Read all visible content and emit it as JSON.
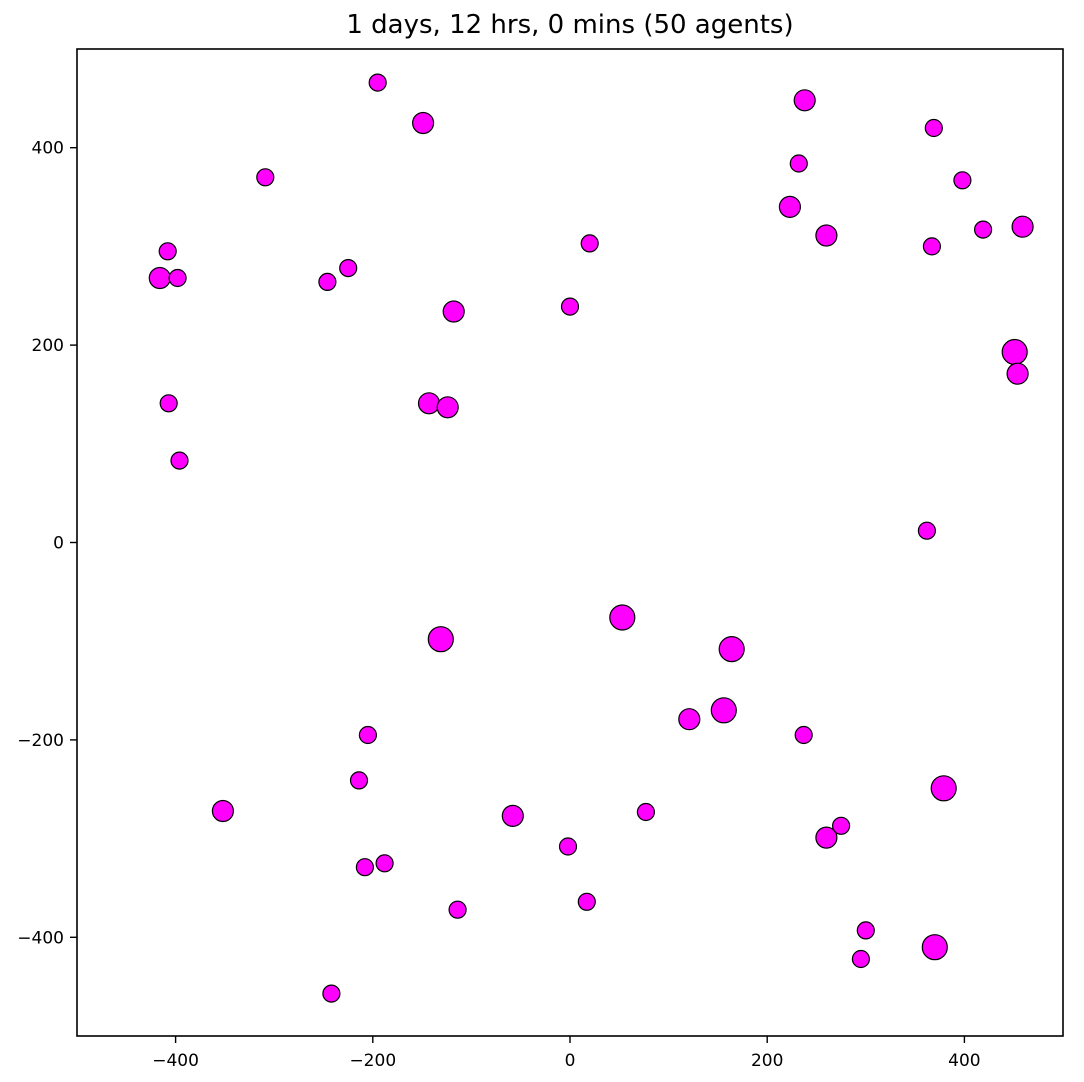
{
  "chart_data": {
    "type": "scatter",
    "title": "1 days, 12 hrs, 0 mins (50 agents)",
    "xlabel": "",
    "ylabel": "",
    "xlim": [
      -500,
      500
    ],
    "ylim": [
      -500,
      500
    ],
    "x_ticks": [
      -400,
      -200,
      0,
      200,
      400
    ],
    "y_ticks": [
      -400,
      -200,
      0,
      200,
      400
    ],
    "x_tick_labels": [
      "−400",
      "−200",
      "0",
      "200",
      "400"
    ],
    "y_tick_labels": [
      "−400",
      "−200",
      "0",
      "200",
      "400"
    ],
    "grid": false,
    "legend": false,
    "marker_color": "#ff00ff",
    "marker_edge_color": "#000000",
    "points": [
      {
        "x": -195,
        "y": 466,
        "size": "small"
      },
      {
        "x": -149,
        "y": 425,
        "size": "medium"
      },
      {
        "x": -309,
        "y": 370,
        "size": "small"
      },
      {
        "x": -408,
        "y": 295,
        "size": "small"
      },
      {
        "x": -416,
        "y": 268,
        "size": "medium"
      },
      {
        "x": -398,
        "y": 268,
        "size": "small"
      },
      {
        "x": -246,
        "y": 264,
        "size": "small"
      },
      {
        "x": -225,
        "y": 278,
        "size": "small"
      },
      {
        "x": -118,
        "y": 234,
        "size": "medium"
      },
      {
        "x": 0,
        "y": 239,
        "size": "small"
      },
      {
        "x": 20,
        "y": 303,
        "size": "small"
      },
      {
        "x": 238,
        "y": 448,
        "size": "medium"
      },
      {
        "x": 232,
        "y": 384,
        "size": "small"
      },
      {
        "x": 223,
        "y": 340,
        "size": "medium"
      },
      {
        "x": 260,
        "y": 311,
        "size": "medium"
      },
      {
        "x": 369,
        "y": 420,
        "size": "small"
      },
      {
        "x": 398,
        "y": 367,
        "size": "small"
      },
      {
        "x": 367,
        "y": 300,
        "size": "small"
      },
      {
        "x": 419,
        "y": 317,
        "size": "small"
      },
      {
        "x": 459,
        "y": 320,
        "size": "medium"
      },
      {
        "x": 451,
        "y": 193,
        "size": "large"
      },
      {
        "x": 454,
        "y": 171,
        "size": "medium"
      },
      {
        "x": -407,
        "y": 141,
        "size": "small"
      },
      {
        "x": -143,
        "y": 141,
        "size": "medium"
      },
      {
        "x": -124,
        "y": 137,
        "size": "medium"
      },
      {
        "x": -396,
        "y": 83,
        "size": "small"
      },
      {
        "x": 362,
        "y": 12,
        "size": "small"
      },
      {
        "x": 53,
        "y": -76,
        "size": "large"
      },
      {
        "x": -131,
        "y": -98,
        "size": "large"
      },
      {
        "x": 164,
        "y": -108,
        "size": "large"
      },
      {
        "x": 121,
        "y": -179,
        "size": "medium"
      },
      {
        "x": 156,
        "y": -170,
        "size": "large"
      },
      {
        "x": 237,
        "y": -195,
        "size": "small"
      },
      {
        "x": -205,
        "y": -195,
        "size": "small"
      },
      {
        "x": -214,
        "y": -241,
        "size": "small"
      },
      {
        "x": -352,
        "y": -272,
        "size": "medium"
      },
      {
        "x": -58,
        "y": -277,
        "size": "medium"
      },
      {
        "x": 77,
        "y": -273,
        "size": "small"
      },
      {
        "x": 379,
        "y": -249,
        "size": "large"
      },
      {
        "x": 275,
        "y": -287,
        "size": "small"
      },
      {
        "x": 260,
        "y": -299,
        "size": "medium"
      },
      {
        "x": -2,
        "y": -308,
        "size": "small"
      },
      {
        "x": -188,
        "y": -325,
        "size": "small"
      },
      {
        "x": -208,
        "y": -329,
        "size": "small"
      },
      {
        "x": 17,
        "y": -364,
        "size": "small"
      },
      {
        "x": -114,
        "y": -372,
        "size": "small"
      },
      {
        "x": 300,
        "y": -393,
        "size": "small"
      },
      {
        "x": 370,
        "y": -410,
        "size": "large"
      },
      {
        "x": 295,
        "y": -422,
        "size": "small"
      },
      {
        "x": -242,
        "y": -457,
        "size": "small"
      }
    ]
  }
}
